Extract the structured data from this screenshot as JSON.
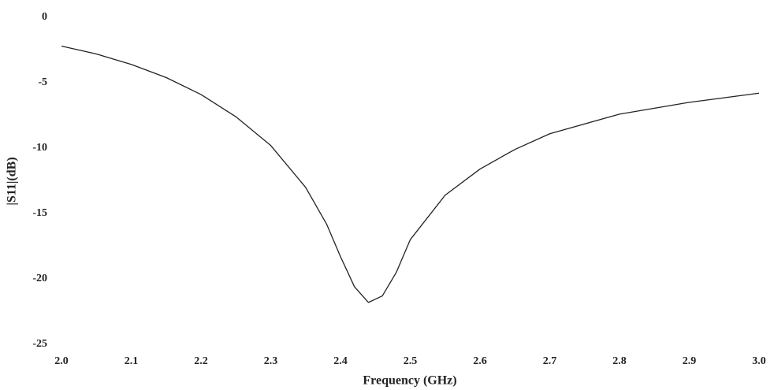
{
  "chart_data": {
    "type": "line",
    "x_label": "Frequency (GHz)",
    "y_label": "|S11|(dB)",
    "x": [
      2.0,
      2.05,
      2.1,
      2.15,
      2.2,
      2.25,
      2.3,
      2.35,
      2.38,
      2.4,
      2.42,
      2.44,
      2.46,
      2.48,
      2.5,
      2.55,
      2.6,
      2.65,
      2.7,
      2.8,
      2.9,
      3.0
    ],
    "series": [
      {
        "color": "#222222",
        "values": [
          -2.2,
          -2.8,
          -3.6,
          -4.6,
          -5.9,
          -7.6,
          -9.8,
          -13.0,
          -15.8,
          -18.3,
          -20.6,
          -21.8,
          -21.3,
          -19.5,
          -17.0,
          -13.6,
          -11.6,
          -10.1,
          -8.9,
          -7.4,
          -6.5,
          -5.8
        ]
      }
    ],
    "xlim": [
      2.0,
      3.0
    ],
    "xticks": [
      {
        "value": 2.0,
        "label": "2.0"
      },
      2.1,
      2.2,
      2.3,
      2.4,
      2.5,
      2.6,
      2.7,
      2.8,
      2.9,
      {
        "value": 3.0,
        "label": "3.0"
      }
    ],
    "ylim": [
      -25,
      0
    ],
    "yticks": [
      0,
      -5,
      -10,
      -15,
      -20,
      -25
    ],
    "grid": false
  }
}
